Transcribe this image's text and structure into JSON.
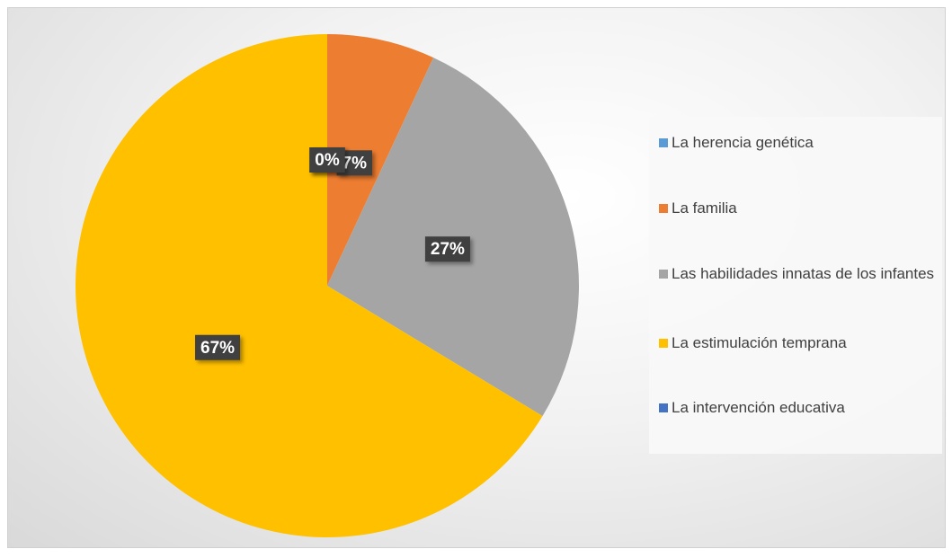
{
  "chart_data": {
    "type": "pie",
    "categories": [
      "La herencia genética",
      "La familia",
      "Las habilidades innatas de los infantes",
      "La estimulación temprana",
      "La intervención educativa"
    ],
    "values": [
      0,
      7,
      27,
      67,
      0
    ],
    "value_labels": [
      "0%",
      "7%",
      "27%",
      "67%",
      "0%"
    ],
    "colors": [
      "#5b9bd5",
      "#ed7d31",
      "#a5a5a5",
      "#ffc000",
      "#4472c4"
    ],
    "legend": "right"
  }
}
